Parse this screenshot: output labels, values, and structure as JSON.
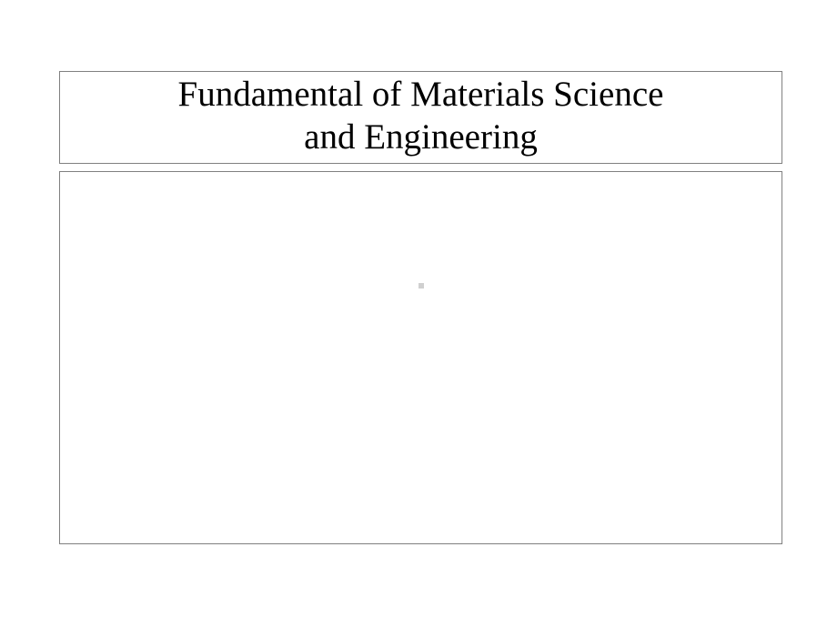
{
  "slide": {
    "title_line1": "Fundamental of Materials Science",
    "title_line2": "and Engineering",
    "border_color": "#808080",
    "background_color": "#ffffff",
    "title_fontsize": 39,
    "title_font_family": "Times New Roman",
    "title_color": "#000000",
    "center_mark_color": "#d0d0d0"
  }
}
